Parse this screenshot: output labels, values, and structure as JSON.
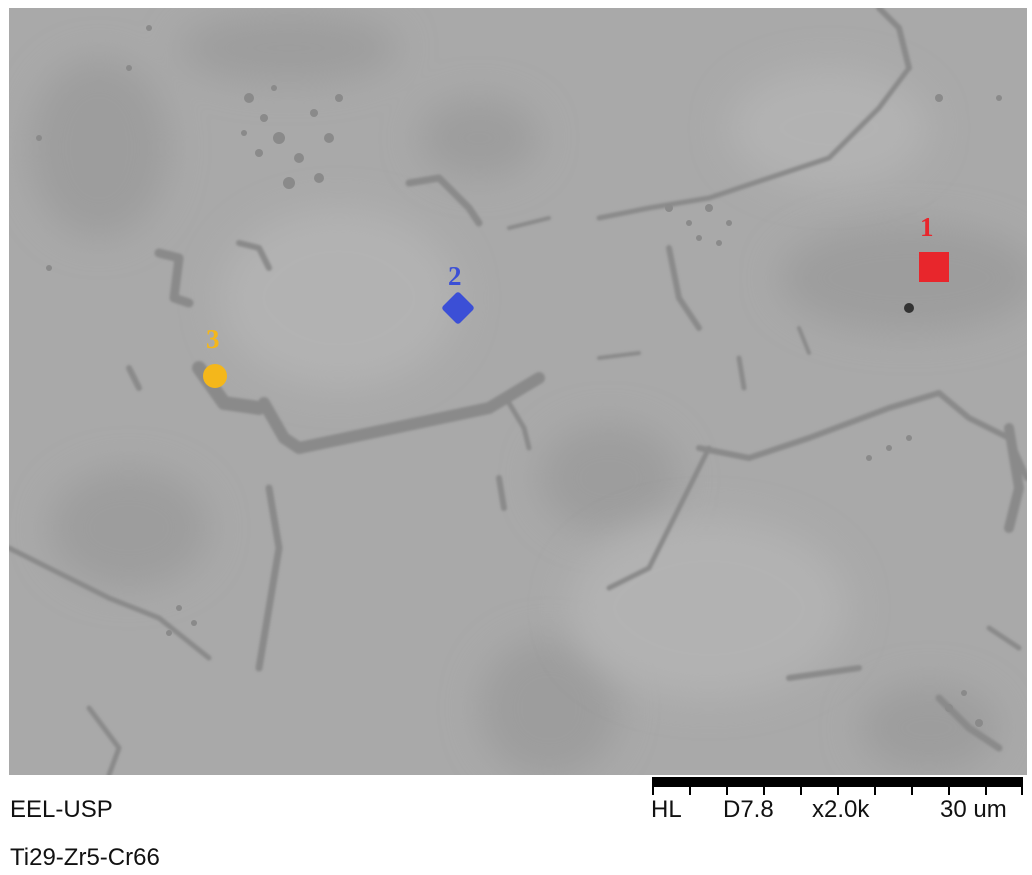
{
  "markers": [
    {
      "label": "1",
      "shape": "square",
      "color": "#e8262c"
    },
    {
      "label": "2",
      "shape": "diamond",
      "color": "#3b4fd6"
    },
    {
      "label": "3",
      "shape": "circle",
      "color": "#f4b71b"
    }
  ],
  "info": {
    "lab": "EEL-USP",
    "sample": "Ti29-Zr5-Cr66",
    "mode": "HL",
    "distance": "D7.8",
    "magnification": "x2.0k",
    "scale": "30 um"
  },
  "colors": {
    "matrix": "#a9a9a9",
    "dark_phase": "#8a8a8a",
    "grain_dark": "#9c9c9c"
  }
}
